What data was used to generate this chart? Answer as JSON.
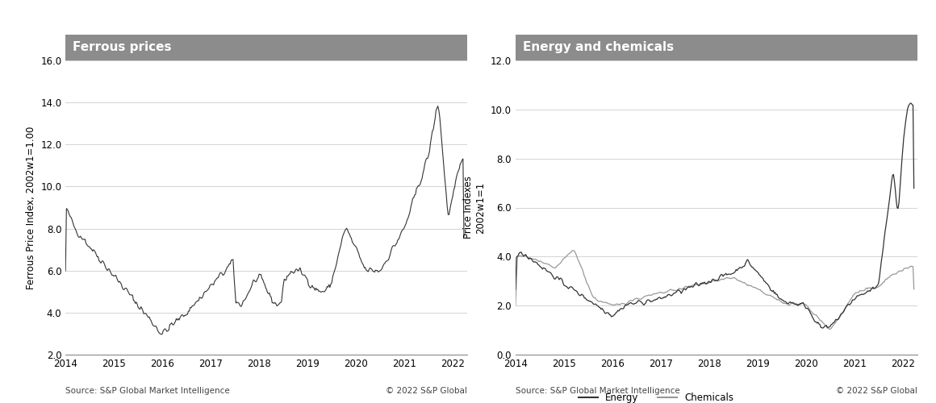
{
  "ferrous_title": "Ferrous prices",
  "ferrous_ylabel": "Ferrous Price Index, 2002w1=1.00",
  "ferrous_ylim": [
    2.0,
    16.0
  ],
  "ferrous_yticks": [
    2.0,
    4.0,
    6.0,
    8.0,
    10.0,
    12.0,
    14.0,
    16.0
  ],
  "energy_chem_title": "Energy and chemicals",
  "energy_chem_ylabel": "Price Indexes\n2002w1=1",
  "energy_chem_ylim": [
    0.0,
    12.0
  ],
  "energy_chem_yticks": [
    0.0,
    2.0,
    4.0,
    6.0,
    8.0,
    10.0,
    12.0
  ],
  "xlim_start": 2014.0,
  "xlim_end": 2022.3,
  "xticks": [
    2014,
    2015,
    2016,
    2017,
    2018,
    2019,
    2020,
    2021,
    2022
  ],
  "header_color": "#8c8c8c",
  "header_text_color": "#ffffff",
  "line_color_dark": "#333333",
  "line_color_light": "#999999",
  "background_color": "#ffffff",
  "source_left": "Source: S&P Global Market Intelligence",
  "source_right": "© 2022 S&P Global",
  "legend_energy": "Energy",
  "legend_chemicals": "Chemicals",
  "title_fontsize": 11,
  "label_fontsize": 8.5,
  "tick_fontsize": 8.5,
  "source_fontsize": 7.5
}
